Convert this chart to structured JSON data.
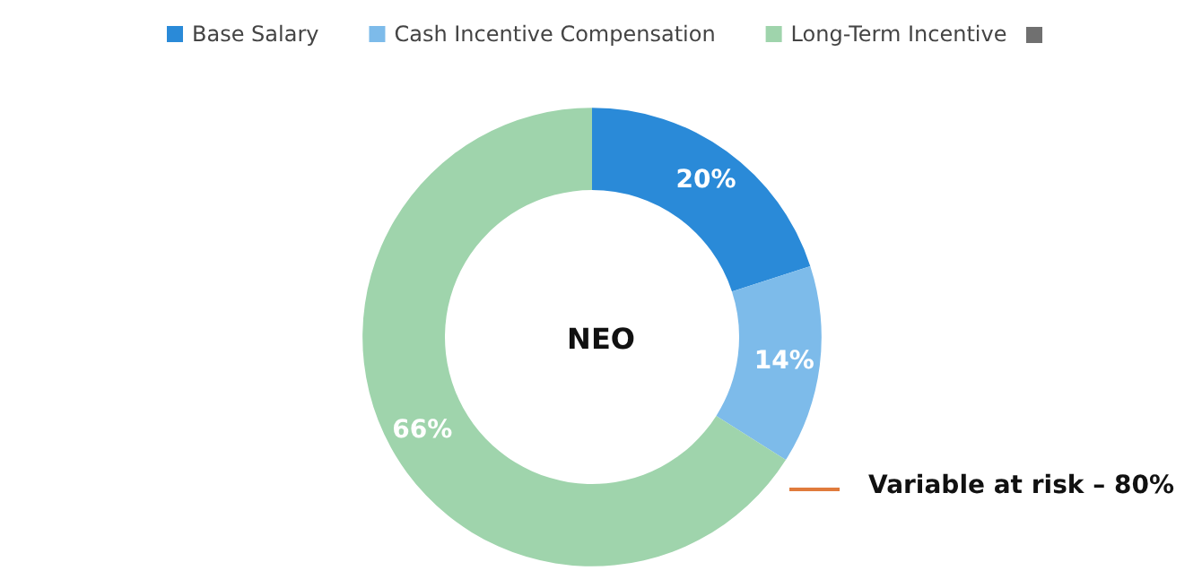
{
  "chart_data": {
    "type": "donut",
    "title": "NEO",
    "categories": [
      "Base Salary",
      "Cash Incentive Compensation",
      "Long-Term Incentive"
    ],
    "values": [
      20,
      14,
      66
    ],
    "colors": [
      "#2a8ad8",
      "#7dbbea",
      "#9fd4ac"
    ],
    "value_labels": [
      "20%",
      "14%",
      "66%"
    ],
    "legend": "top",
    "annotations": [
      "Variable at risk – 80%"
    ]
  }
}
